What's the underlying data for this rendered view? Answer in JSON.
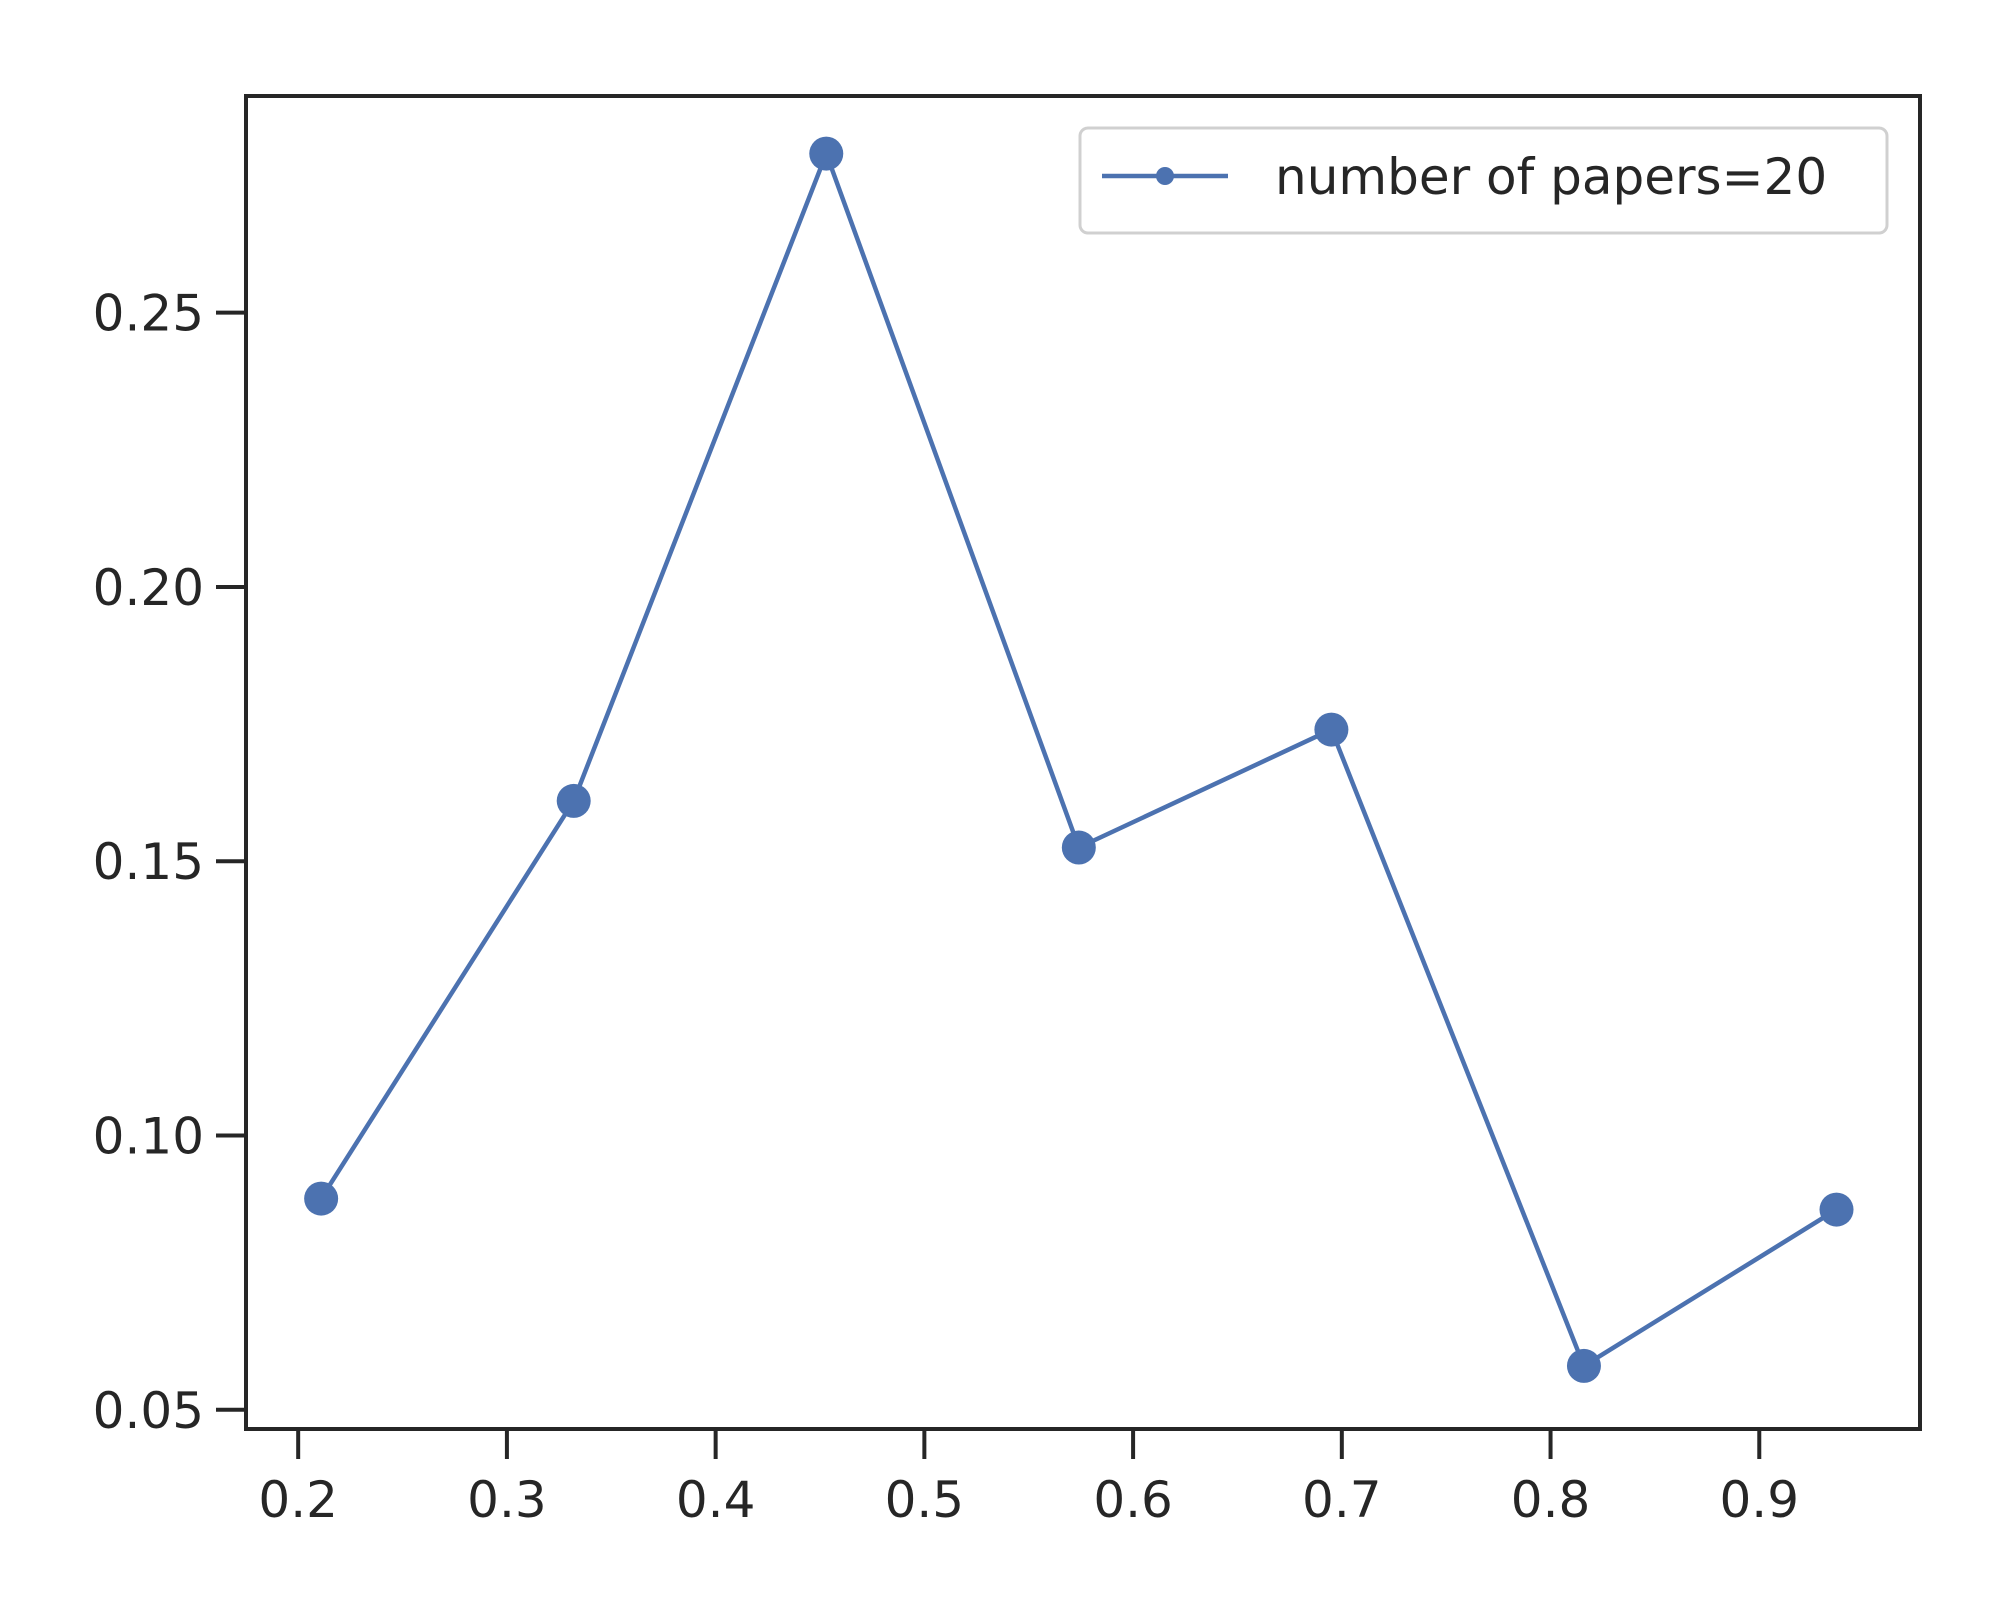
{
  "chart_data": {
    "type": "line",
    "title": "",
    "xlabel": "",
    "ylabel": "",
    "xlim": [
      0.175,
      0.977
    ],
    "ylim": [
      0.0465,
      0.2895
    ],
    "x_ticks": [
      {
        "value": 0.2,
        "label": "0.2"
      },
      {
        "value": 0.3,
        "label": "0.3"
      },
      {
        "value": 0.4,
        "label": "0.4"
      },
      {
        "value": 0.5,
        "label": "0.5"
      },
      {
        "value": 0.6,
        "label": "0.6"
      },
      {
        "value": 0.7,
        "label": "0.7"
      },
      {
        "value": 0.8,
        "label": "0.8"
      },
      {
        "value": 0.9,
        "label": "0.9"
      }
    ],
    "y_ticks": [
      {
        "value": 0.05,
        "label": "0.05"
      },
      {
        "value": 0.1,
        "label": "0.10"
      },
      {
        "value": 0.15,
        "label": "0.15"
      },
      {
        "value": 0.2,
        "label": "0.20"
      },
      {
        "value": 0.25,
        "label": "0.25"
      }
    ],
    "grid": false,
    "legend_position": "top-right",
    "series": [
      {
        "name": "number of papers=20",
        "color": "#4c72b0",
        "x": [
          0.211,
          0.332,
          0.453,
          0.574,
          0.695,
          0.816,
          0.937
        ],
        "y": [
          0.0885,
          0.161,
          0.279,
          0.1525,
          0.174,
          0.058,
          0.0865
        ]
      }
    ]
  }
}
